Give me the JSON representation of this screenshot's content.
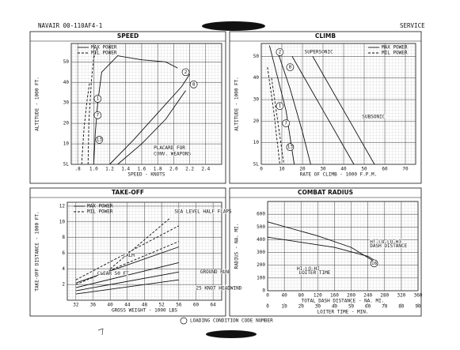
{
  "header": {
    "left": "NAVAIR 00-110AF4-1",
    "right": "SERVICE"
  },
  "footer": {
    "note": "LOADING CONDITION CODE NUMBER"
  },
  "chart_data": [
    {
      "type": "line",
      "title": "SPEED",
      "xlabel": "SPEED - KNOTS",
      "ylabel": "ALTITUDE - 1000 FT.",
      "xlim": [
        0.72,
        2.6
      ],
      "xticks": [
        {
          "value": 0.8,
          "label": ".8"
        },
        {
          "value": 1,
          "label": "1.0"
        },
        1.2,
        1.4,
        1.6,
        1.8,
        {
          "value": 2,
          "label": "2.0"
        },
        2.2,
        2.4
      ],
      "ylim": [
        0,
        59
      ],
      "yticks": [
        {
          "value": 0,
          "label": "SL"
        },
        10,
        20,
        30,
        40,
        50
      ],
      "grid": true,
      "legend": "upper left",
      "series": [
        {
          "name": "MAX POWER",
          "color": "#111111",
          "dash": false,
          "x": [
            1.0,
            1.02,
            1.05,
            1.1,
            1.3,
            1.6,
            1.9,
            2.05,
            null,
            1.2,
            1.5,
            1.8,
            2.1,
            2.2,
            null,
            1.3,
            1.6,
            1.9,
            2.15
          ],
          "values": [
            0,
            15,
            30,
            45,
            53,
            51,
            50,
            47,
            null,
            0,
            12,
            25,
            38,
            44,
            null,
            0,
            10,
            22,
            36
          ]
        },
        {
          "name": "MIL POWER",
          "color": "#111111",
          "dash": true,
          "x": [
            0.93,
            0.94,
            0.97,
            1.0,
            1.05,
            null,
            0.85,
            0.88,
            0.92,
            0.95
          ],
          "values": [
            0,
            20,
            40,
            52,
            57,
            null,
            0,
            18,
            32,
            40
          ]
        }
      ],
      "annotations": [
        {
          "text": "1",
          "x": 1.05,
          "y": 32,
          "circled": true
        },
        {
          "text": "2",
          "x": 2.15,
          "y": 45,
          "circled": true
        },
        {
          "text": "8",
          "x": 2.25,
          "y": 39,
          "circled": true
        },
        {
          "text": "7",
          "x": 1.05,
          "y": 24,
          "circled": true
        },
        {
          "text": "13",
          "x": 1.07,
          "y": 12,
          "circled": true
        },
        {
          "text": "PLACARD FOR",
          "x": 1.75,
          "y": 8,
          "circled": false
        },
        {
          "text": "CONV. WEAPONS",
          "x": 1.75,
          "y": 5,
          "circled": false
        }
      ]
    },
    {
      "type": "line",
      "title": "CLIMB",
      "xlabel": "RATE OF CLIMB - 1000 F.P.M.",
      "ylabel": "ALTITUDE - 1000 FT.",
      "xlim": [
        0,
        75
      ],
      "xticks": [
        0,
        10,
        20,
        30,
        40,
        50,
        60,
        70
      ],
      "ylim": [
        0,
        56
      ],
      "yticks": [
        {
          "value": 0,
          "label": "SL"
        },
        10,
        20,
        30,
        40,
        50
      ],
      "grid": true,
      "legend": "upper right",
      "series": [
        {
          "name": "MAX POWER",
          "color": "#111111",
          "dash": false,
          "x": [
            4,
            8,
            12,
            16,
            null,
            8,
            14,
            20,
            24,
            null,
            15,
            30,
            45,
            null,
            25,
            40,
            55
          ],
          "values": [
            55,
            40,
            25,
            0,
            null,
            52,
            35,
            15,
            0,
            null,
            50,
            25,
            0,
            null,
            50,
            25,
            0
          ]
        },
        {
          "name": "MIL POWER",
          "color": "#111111",
          "dash": true,
          "x": [
            3,
            6,
            9,
            null,
            5,
            8,
            11
          ],
          "values": [
            45,
            25,
            0,
            null,
            40,
            20,
            0
          ]
        }
      ],
      "annotations": [
        {
          "text": "2",
          "x": 9,
          "y": 52,
          "circled": true
        },
        {
          "text": "SUPERSONIC",
          "x": 21,
          "y": 52,
          "circled": false
        },
        {
          "text": "8",
          "x": 14,
          "y": 45,
          "circled": true
        },
        {
          "text": "1",
          "x": 9,
          "y": 27,
          "circled": true
        },
        {
          "text": "7",
          "x": 12,
          "y": 19,
          "circled": true
        },
        {
          "text": "13",
          "x": 14,
          "y": 8,
          "circled": true
        },
        {
          "text": "SUBSONIC",
          "x": 49,
          "y": 22,
          "circled": false
        }
      ]
    },
    {
      "type": "line",
      "title": "TAKE-OFF",
      "xlabel": "GROSS WEIGHT - 1000 LBS",
      "ylabel": "TAKE-OFF DISTANCE - 1000 FT.",
      "xlim": [
        30,
        66
      ],
      "xticks": [
        32,
        36,
        40,
        44,
        48,
        52,
        56,
        60,
        64
      ],
      "ylim": [
        0,
        12.5
      ],
      "yticks": [
        2,
        4,
        6,
        8,
        10,
        12
      ],
      "grid": true,
      "legend": "upper left",
      "series": [
        {
          "name": "MAX POWER",
          "color": "#111111",
          "dash": false,
          "x": [
            32,
            56,
            null,
            32,
            56,
            null,
            32,
            56,
            null,
            32,
            56
          ],
          "values": [
            1.2,
            3.6,
            null,
            0.8,
            2.6,
            null,
            1.6,
            4.8,
            null,
            2.2,
            6.8
          ]
        },
        {
          "name": "MIL POWER",
          "color": "#111111",
          "dash": true,
          "x": [
            32,
            56,
            null,
            32,
            56,
            null,
            40,
            54
          ],
          "values": [
            2.6,
            9.5,
            null,
            2.0,
            7.5,
            null,
            4,
            10.5
          ]
        }
      ],
      "annotations": [
        {
          "text": "SEA LEVEL HALF FLAPS",
          "x": 55,
          "y": 11.3,
          "circled": false
        },
        {
          "text": "CALM",
          "x": 43,
          "y": 5.7,
          "circled": false
        },
        {
          "text": "CLEAR 50 FT",
          "x": 37,
          "y": 3.4,
          "circled": false
        },
        {
          "text": "GROUND RUN",
          "x": 61,
          "y": 3.6,
          "circled": false
        },
        {
          "text": "25 KNOT HEADWIND",
          "x": 60,
          "y": 1.5,
          "circled": false
        }
      ]
    },
    {
      "type": "line",
      "title": "COMBAT RADIUS",
      "xlabel": "TOTAL DASH DISTANCE - NA. MI.",
      "x2label": "LOITER TIME - MIN.",
      "ylabel": "RADIUS - NA. MI.",
      "xlim": [
        0,
        360
      ],
      "xticks": [
        0,
        40,
        80,
        120,
        160,
        200,
        240,
        280,
        320,
        360
      ],
      "x2lim": [
        0,
        90
      ],
      "x2ticks": [
        0,
        10,
        20,
        30,
        40,
        50,
        60,
        70,
        80,
        90
      ],
      "ylim": [
        0,
        700
      ],
      "yticks": [
        0,
        100,
        200,
        300,
        400,
        500,
        600
      ],
      "grid": true,
      "lines": [
        {
          "color": "#111111",
          "axis": "x",
          "x": [
            0,
            120,
            200,
            250
          ],
          "values": [
            540,
            430,
            340,
            240
          ]
        },
        {
          "color": "#111111",
          "axis": "x2",
          "x": [
            0,
            40,
            60,
            65
          ],
          "values": [
            420,
            340,
            270,
            230
          ]
        }
      ],
      "annotations": [
        {
          "text": "HI-LO-LO-HI",
          "x": 245,
          "y": 380,
          "circled": false
        },
        {
          "text": "DASH DISTANCE",
          "x": 245,
          "y": 350,
          "circled": false
        },
        {
          "text": "16",
          "x": 255,
          "y": 215,
          "circled": true
        },
        {
          "text": "HI-LO-HI",
          "x": 70,
          "y": 170,
          "circled": false
        },
        {
          "text": "LOITER TIME",
          "x": 75,
          "y": 140,
          "circled": false
        }
      ]
    }
  ]
}
